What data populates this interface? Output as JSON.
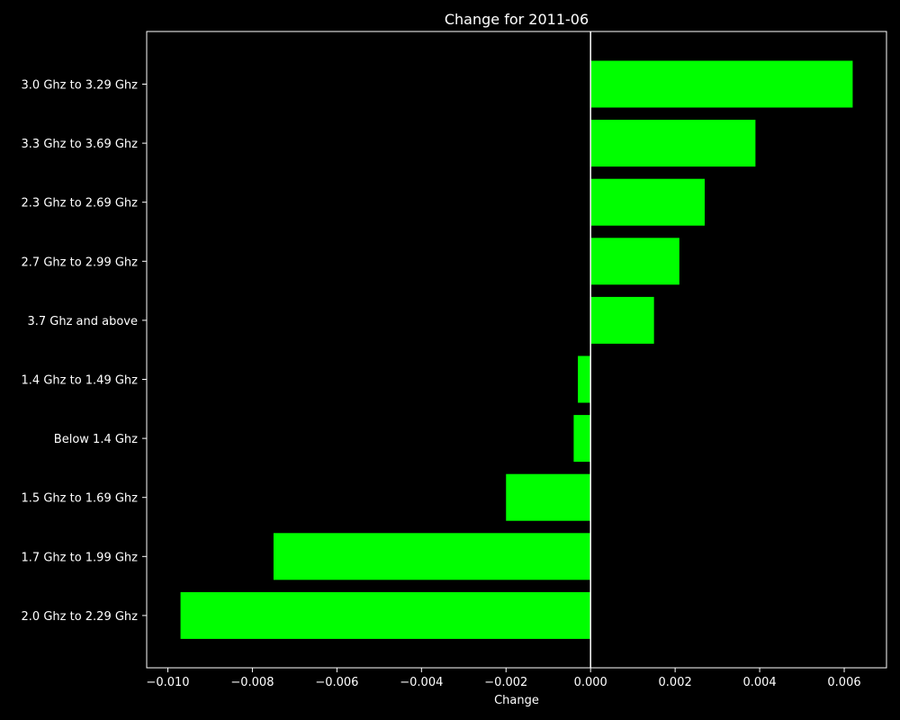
{
  "chart_data": {
    "type": "bar",
    "orientation": "horizontal",
    "title": "Change for 2011-06",
    "xlabel": "Change",
    "ylabel": "",
    "categories": [
      "3.0 Ghz to 3.29 Ghz",
      "3.3 Ghz to 3.69 Ghz",
      "2.3 Ghz to 2.69 Ghz",
      "2.7 Ghz to 2.99 Ghz",
      "3.7 Ghz and above",
      "1.4 Ghz to 1.49 Ghz",
      "Below 1.4 Ghz",
      "1.5 Ghz to 1.69 Ghz",
      "1.7 Ghz to 1.99 Ghz",
      "2.0 Ghz to 2.29 Ghz"
    ],
    "values": [
      0.0062,
      0.0039,
      0.0027,
      0.0021,
      0.0015,
      -0.0003,
      -0.0004,
      -0.002,
      -0.0075,
      -0.0097
    ],
    "xlim": [
      -0.0105,
      0.007
    ],
    "xticks": [
      -0.01,
      -0.008,
      -0.006,
      -0.004,
      -0.002,
      0.0,
      0.002,
      0.004,
      0.006
    ],
    "xtick_labels": [
      "−0.010",
      "−0.008",
      "−0.006",
      "−0.004",
      "−0.002",
      "0.000",
      "0.002",
      "0.004",
      "0.006"
    ],
    "grid": false,
    "zero_line": true,
    "bar_color": "#00ff00",
    "background_color": "#000000",
    "text_color": "#ffffff",
    "axis_color": "#ffffff"
  }
}
